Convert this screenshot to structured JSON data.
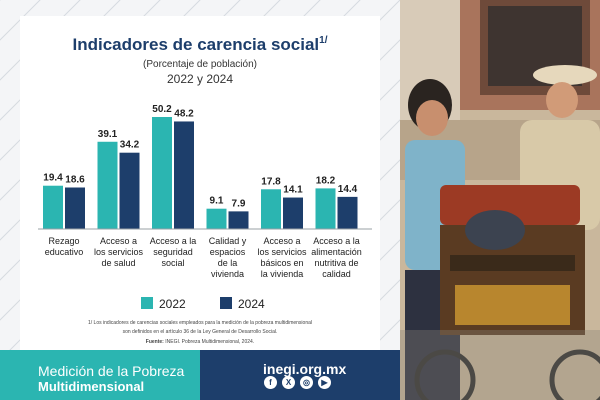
{
  "chart_data": {
    "type": "bar",
    "title": "Indicadores de carencia social",
    "title_sup": "1/",
    "subtitle": "(Porcentaje de población)",
    "subtitle2": "2022 y 2024",
    "categories": [
      [
        "Rezago",
        "educativo"
      ],
      [
        "Acceso a",
        "los servicios",
        "de salud"
      ],
      [
        "Acceso a la",
        "seguridad",
        "social"
      ],
      [
        "Calidad y",
        "espacios",
        "de la",
        "vivienda"
      ],
      [
        "Acceso a",
        "los servicios",
        "básicos en",
        "la vivienda"
      ],
      [
        "Acceso a la",
        "alimentación",
        "nutritiva de",
        "calidad"
      ]
    ],
    "series": [
      {
        "name": "2022",
        "color": "#2bb5b1",
        "values": [
          19.4,
          39.1,
          50.2,
          9.1,
          17.8,
          18.2
        ]
      },
      {
        "name": "2024",
        "color": "#1d3e6b",
        "values": [
          18.6,
          34.2,
          48.2,
          7.9,
          14.1,
          14.4
        ]
      }
    ],
    "ylim": [
      0,
      50.2
    ],
    "grid": false,
    "legend": "bottom",
    "footnote_lines": [
      "1/ Los indicadores de carencias sociales empleados para la medición de la pobreza multidimensional",
      "son definidos en el artículo 36 de la Ley General de Desarrollo Social."
    ],
    "source_label": "Fuente:",
    "source_text": "INEGI. Pobreza Multidimensional, 2024."
  },
  "footer": {
    "line1": "Medición de la Pobreza",
    "line2": "Multidimensional",
    "website": "inegi.org.mx",
    "social_icons": [
      "facebook-icon",
      "x-icon",
      "instagram-icon",
      "youtube-icon"
    ],
    "social_glyphs": [
      "f",
      "X",
      "◎",
      "▶"
    ]
  },
  "colors": {
    "teal": "#2bb5b1",
    "navy": "#1d3e6b",
    "title": "#1d3e6b"
  }
}
